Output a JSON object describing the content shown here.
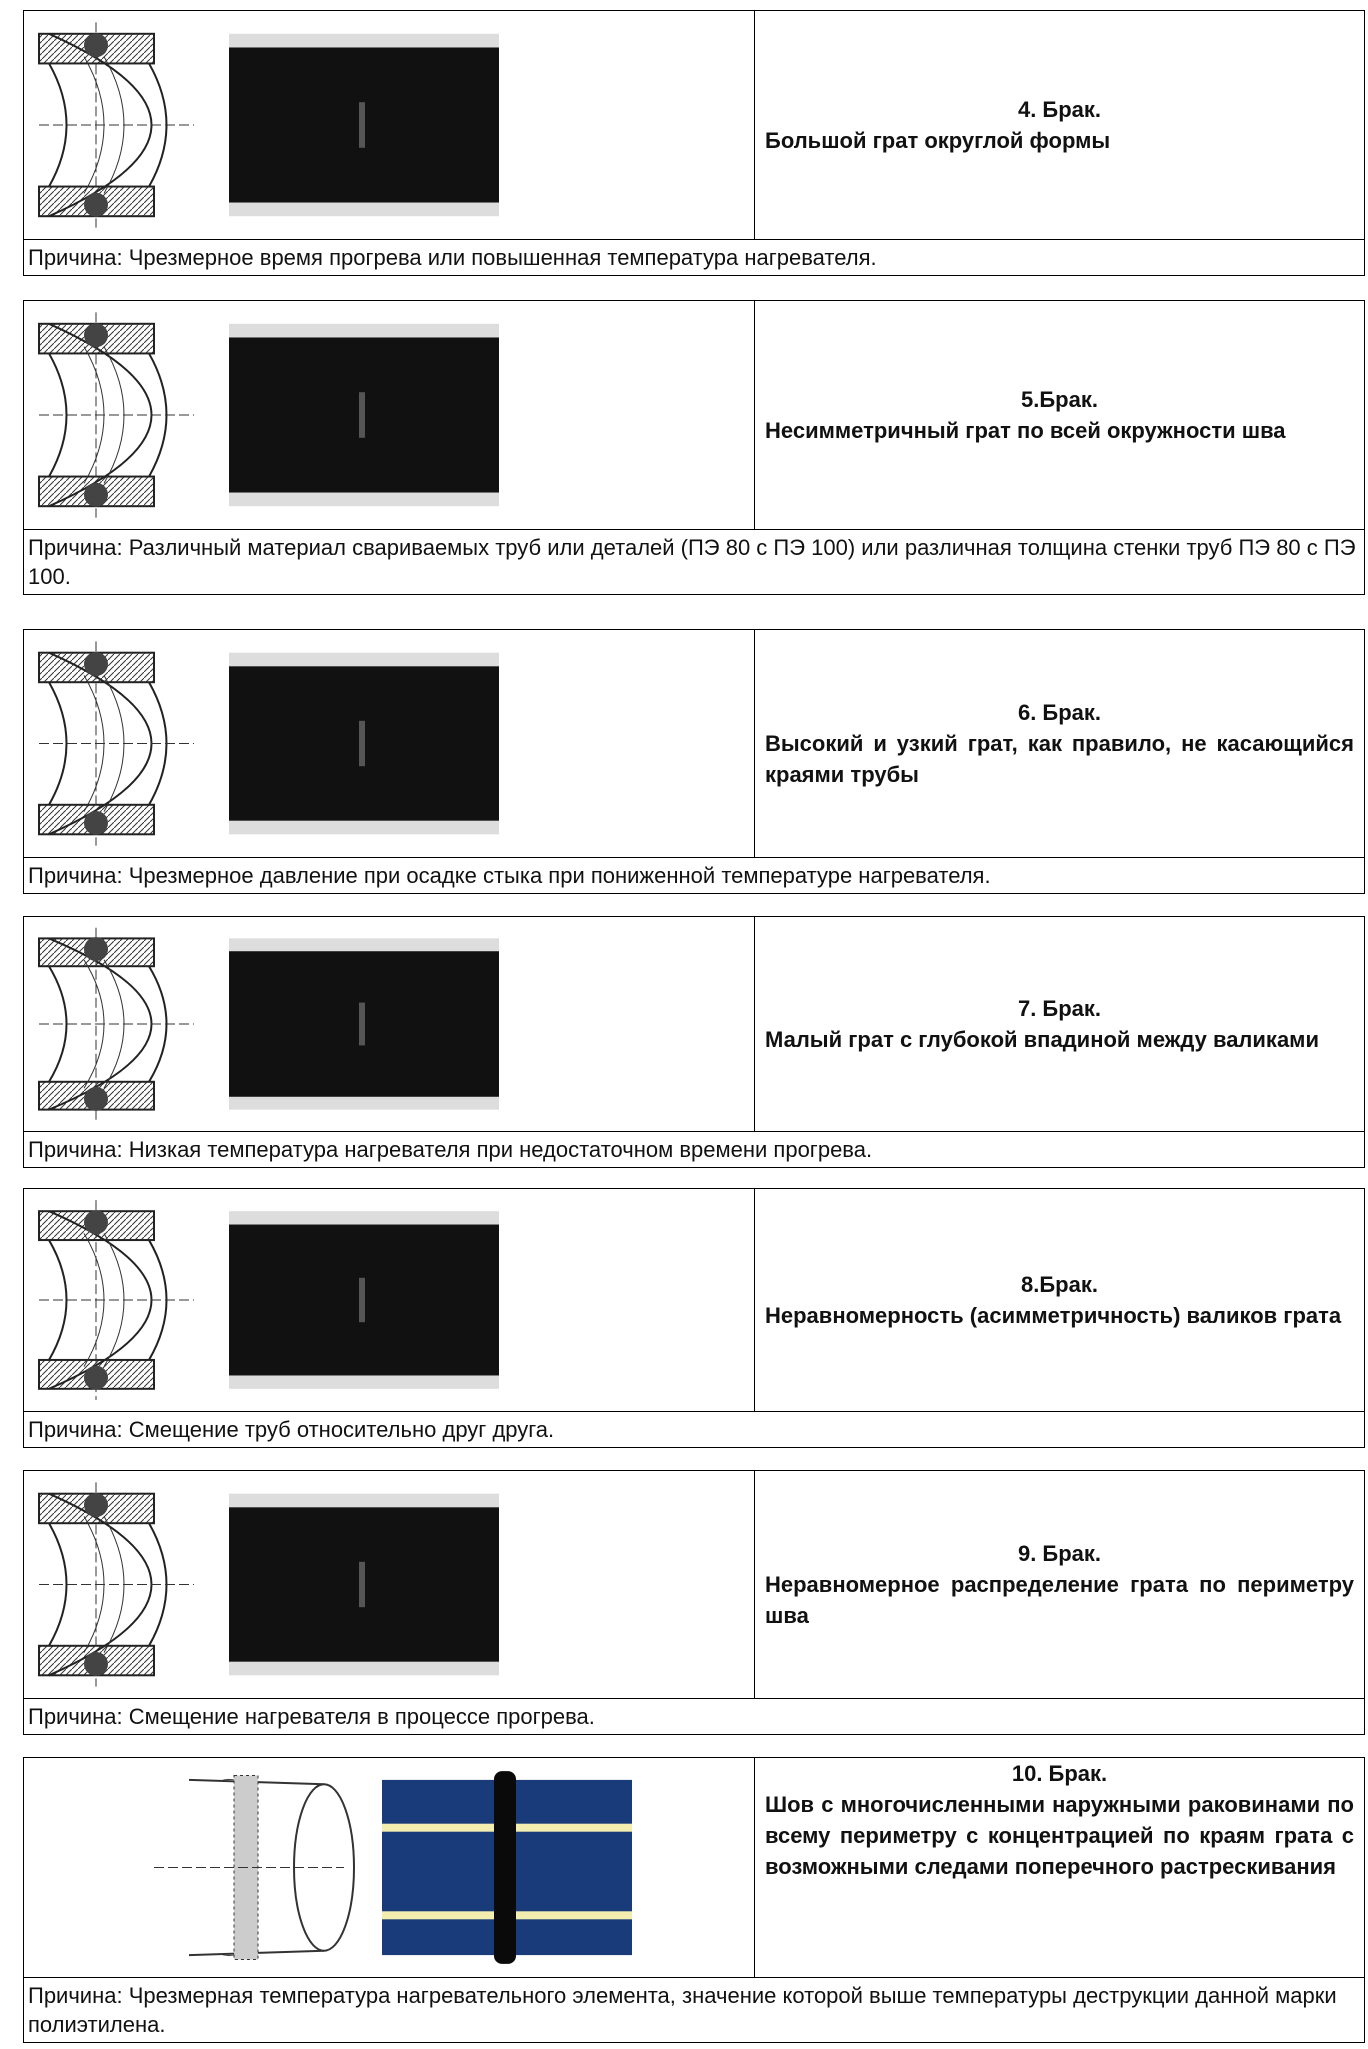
{
  "items": [
    {
      "title": "4. Брак.",
      "description": "Большой грат округлой формы",
      "cause": "Причина: Чрезмерное время прогрева или повышенная температура нагревателя."
    },
    {
      "title": "5.Брак.",
      "description": "Несимметричный грат по всей окружности шва",
      "cause": "Причина: Различный материал свариваемых труб или деталей (ПЭ 80 с ПЭ 100) или различная толщина стенки труб ПЭ 80 с ПЭ 100."
    },
    {
      "title": "6. Брак.",
      "description": "Высокий и узкий грат, как правило, не касающийся краями трубы",
      "cause": "Причина: Чрезмерное давление при осадке стыка при пониженной температуре нагревателя."
    },
    {
      "title": "7. Брак.",
      "description": "Малый грат с глубокой впадиной между валиками",
      "cause": "Причина: Низкая температура нагревателя при недостаточном времени прогрева."
    },
    {
      "title": "8.Брак.",
      "description": "Неравномерность (асимметричность) валиков грата",
      "cause": "Причина: Смещение труб относительно друг друга."
    },
    {
      "title": "9. Брак.",
      "description": "Неравномерное распределение грата по периметру шва",
      "cause": "Причина: Смещение нагревателя в процессе прогрева."
    },
    {
      "title": "10. Брак.",
      "description": "Шов с многочисленными наружными раковинами по всему периметру с концентрацией по краям грата с возможными следами поперечного растрескивания",
      "cause": "Причина: Чрезмерная температура нагревательного элемента, значение которой выше температуры деструкции данной марки полиэтилена."
    }
  ]
}
